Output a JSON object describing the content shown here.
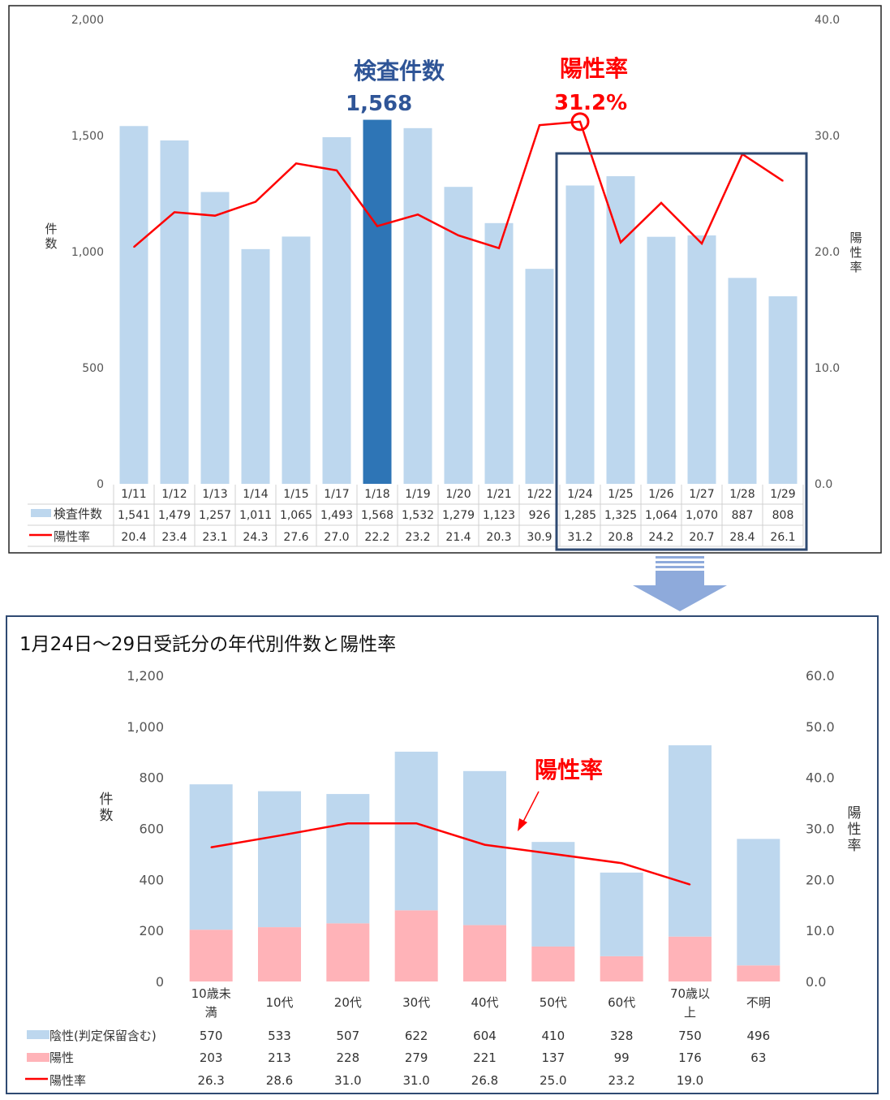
{
  "chart_data": [
    {
      "type": "bar",
      "categories": [
        "1/11",
        "1/12",
        "1/13",
        "1/14",
        "1/15",
        "1/17",
        "1/18",
        "1/19",
        "1/20",
        "1/21",
        "1/22",
        "1/24",
        "1/25",
        "1/26",
        "1/27",
        "1/28",
        "1/29"
      ],
      "series": [
        {
          "name": "検査件数",
          "type": "bar",
          "axis": "left",
          "values": [
            1541,
            1479,
            1257,
            1011,
            1065,
            1493,
            1568,
            1532,
            1279,
            1123,
            926,
            1285,
            1325,
            1064,
            1070,
            887,
            808
          ],
          "labels": [
            "1,541",
            "1,479",
            "1,257",
            "1,011",
            "1,065",
            "1,493",
            "1,568",
            "1,532",
            "1,279",
            "1,123",
            "926",
            "1,285",
            "1,325",
            "1,064",
            "1,070",
            "887",
            "808"
          ]
        },
        {
          "name": "陽性率",
          "type": "line",
          "axis": "right",
          "values": [
            20.4,
            23.4,
            23.1,
            24.3,
            27.6,
            27.0,
            22.2,
            23.2,
            21.4,
            20.3,
            30.9,
            31.2,
            20.8,
            24.2,
            20.7,
            28.4,
            26.1
          ],
          "labels": [
            "20.4",
            "23.4",
            "23.1",
            "24.3",
            "27.6",
            "27.0",
            "22.2",
            "23.2",
            "21.4",
            "20.3",
            "30.9",
            "31.2",
            "20.8",
            "24.2",
            "20.7",
            "28.4",
            "26.1"
          ]
        }
      ],
      "ylabel": "件数",
      "y2label": "陽性率",
      "ylim": [
        0,
        2000
      ],
      "y2lim": [
        0,
        40
      ],
      "yticks": [
        "0",
        "500",
        "1,000",
        "1,500",
        "2,000"
      ],
      "y2ticks": [
        "0.0",
        "10.0",
        "20.0",
        "30.0",
        "40.0"
      ],
      "highlight_bar_index": 6,
      "highlight_point_index": 11,
      "highlight_box": "1/24-1/29",
      "colors": {
        "bar": "#bdd7ee",
        "bar_highlight": "#2e75b6",
        "line": "#ff0000",
        "box": "#2f4a72"
      },
      "annotations": [
        {
          "text": "検査件数",
          "value": "1,568",
          "color": "#2f5597"
        },
        {
          "text": "陽性率",
          "value": "31.2%",
          "color": "#ff0000"
        }
      ]
    },
    {
      "type": "bar",
      "title": "1月24日～29日受託分の年代別件数と陽性率",
      "categories": [
        "10歳未満",
        "10代",
        "20代",
        "30代",
        "40代",
        "50代",
        "60代",
        "70歳以上",
        "不明"
      ],
      "category_lines": [
        [
          "10歳未",
          "満"
        ],
        [
          "10代"
        ],
        [
          "20代"
        ],
        [
          "30代"
        ],
        [
          "40代"
        ],
        [
          "50代"
        ],
        [
          "60代"
        ],
        [
          "70歳以",
          "上"
        ],
        [
          "不明"
        ]
      ],
      "series": [
        {
          "name": "陰性(判定保留含む)",
          "type": "bar",
          "stacked": true,
          "axis": "left",
          "values": [
            570,
            533,
            507,
            622,
            604,
            410,
            328,
            750,
            496
          ],
          "labels": [
            "570",
            "533",
            "507",
            "622",
            "604",
            "410",
            "328",
            "750",
            "496"
          ]
        },
        {
          "name": "陽性",
          "type": "bar",
          "stacked": true,
          "axis": "left",
          "values": [
            203,
            213,
            228,
            279,
            221,
            137,
            99,
            176,
            63
          ],
          "labels": [
            "203",
            "213",
            "228",
            "279",
            "221",
            "137",
            "99",
            "176",
            "63"
          ]
        },
        {
          "name": "陽性率",
          "type": "line",
          "axis": "right",
          "values": [
            26.3,
            28.6,
            31.0,
            31.0,
            26.8,
            25.0,
            23.2,
            19.0,
            null
          ],
          "labels": [
            "26.3",
            "28.6",
            "31.0",
            "31.0",
            "26.8",
            "25.0",
            "23.2",
            "19.0",
            ""
          ]
        }
      ],
      "ylabel": "件数",
      "y2label": "陽性率",
      "ylim": [
        0,
        1200
      ],
      "y2lim": [
        0,
        60
      ],
      "yticks": [
        "0",
        "200",
        "400",
        "600",
        "800",
        "1,000",
        "1,200"
      ],
      "y2ticks": [
        "0.0",
        "10.0",
        "20.0",
        "30.0",
        "40.0",
        "50.0",
        "60.0"
      ],
      "colors": {
        "negative": "#bdd7ee",
        "positive": "#ffb3b8",
        "line": "#ff0000",
        "frame": "#2f4a72"
      },
      "annotations": [
        {
          "text": "陽性率",
          "color": "#ff0000"
        }
      ]
    }
  ]
}
